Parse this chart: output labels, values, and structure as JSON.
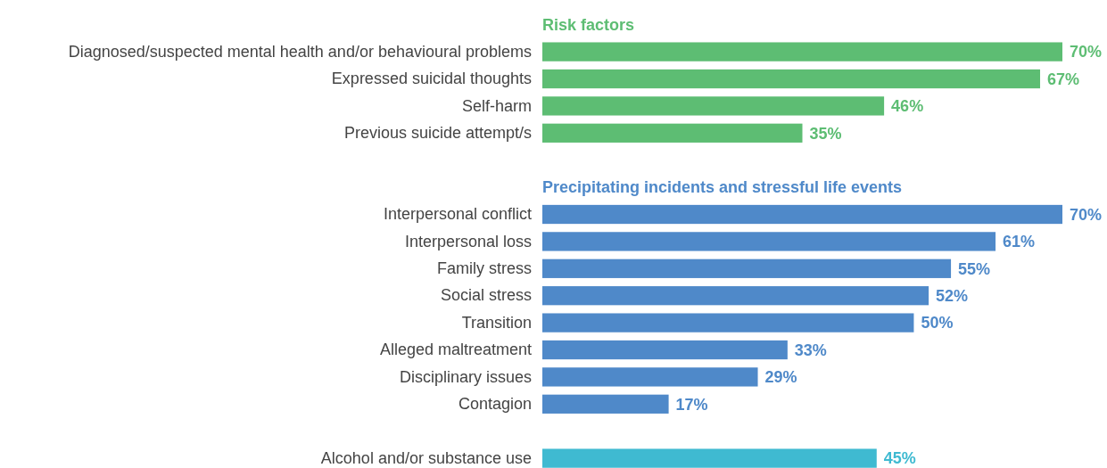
{
  "chart_data": {
    "type": "bar",
    "orientation": "horizontal",
    "categories": [
      null,
      "Diagnosed/suspected mental health and/or behavioural problems",
      "Expressed suicidal thoughts",
      "Self-harm",
      "Previous suicide attempt/s",
      null,
      null,
      "Interpersonal conflict",
      "Interpersonal loss",
      "Family stress",
      "Social stress",
      "Transition",
      "Alleged maltreatment",
      "Disciplinary issues",
      "Contagion",
      null,
      "Alcohol and/or substance use"
    ],
    "values": [
      null,
      70,
      67,
      46,
      35,
      null,
      null,
      70,
      61,
      55,
      52,
      50,
      33,
      29,
      17,
      null,
      45
    ],
    "colors": [
      null,
      "#5dbd73",
      "#5dbd73",
      "#5dbd73",
      "#5dbd73",
      null,
      null,
      "#4f89c9",
      "#4f89c9",
      "#4f89c9",
      "#4f89c9",
      "#4f89c9",
      "#4f89c9",
      "#4f89c9",
      "#4f89c9",
      null,
      "#3fbad1"
    ],
    "value_labels": [
      null,
      "70%",
      "67%",
      "46%",
      "35%",
      null,
      null,
      "70%",
      "61%",
      "55%",
      "52%",
      "50%",
      "33%",
      "29%",
      "17%",
      null,
      "45%"
    ],
    "annotations": [
      "Risk factors",
      "Precipitating incidents and stressful life events"
    ]
  }
}
